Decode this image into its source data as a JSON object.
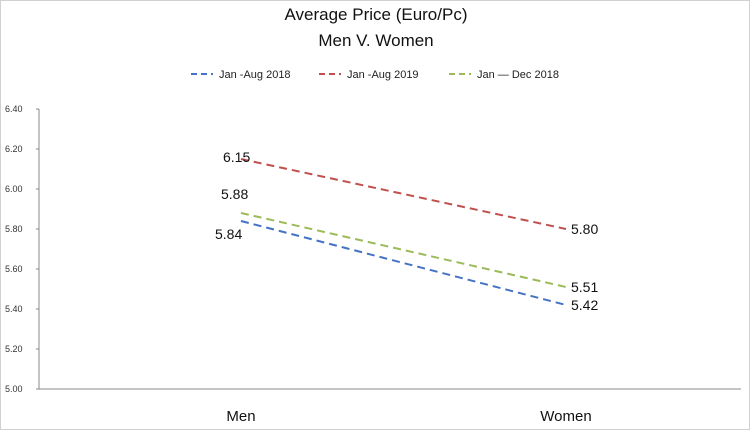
{
  "chart_data": {
    "type": "line",
    "title": "Average Price (Euro/Pc)",
    "subtitle": "Men V. Women",
    "categories": [
      "Men",
      "Women"
    ],
    "ylim": [
      5.0,
      6.4
    ],
    "yticks": [
      "5.00",
      "5.20",
      "5.40",
      "5.60",
      "5.80",
      "6.00",
      "6.20",
      "6.40"
    ],
    "legend_position": "top",
    "grid": false,
    "series": [
      {
        "name": "Jan -Aug 2018",
        "values": [
          5.84,
          5.42
        ],
        "labels": [
          "5.84",
          "5.42"
        ],
        "color": "#4472C4"
      },
      {
        "name": "Jan -Aug 2019",
        "values": [
          6.15,
          5.8
        ],
        "labels": [
          "6.15",
          "5.80"
        ],
        "color": "#C0504D"
      },
      {
        "name": "Jan — Dec 2018",
        "values": [
          5.88,
          5.51
        ],
        "labels": [
          "5.88",
          "5.51"
        ],
        "color": "#9BBB59"
      }
    ]
  }
}
